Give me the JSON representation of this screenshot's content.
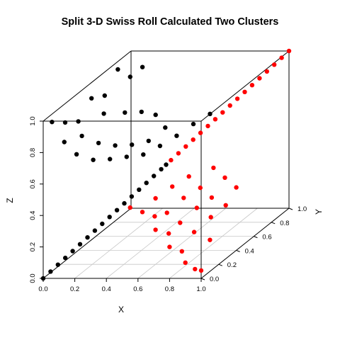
{
  "chart_data": {
    "type": "scatter",
    "projection": "3d",
    "title": "Split 3-D Swiss Roll Calculated Two Clusters",
    "xlabel": "X",
    "ylabel": "Y",
    "zlabel": "Z",
    "xlim": [
      0,
      1
    ],
    "ylim": [
      0,
      1
    ],
    "zlim": [
      0,
      1
    ],
    "x_ticks": [
      "0.0",
      "0.2",
      "0.4",
      "0.6",
      "0.8",
      "1.0"
    ],
    "y_ticks": [
      "0.0",
      "0.2",
      "0.4",
      "0.6",
      "0.8",
      "1.0"
    ],
    "z_ticks": [
      "0.0",
      "0.2",
      "0.4",
      "0.6",
      "0.8",
      "1.0"
    ],
    "grid": "box floor grid",
    "legend": "none",
    "series": [
      {
        "color": "#000000",
        "points": [
          [
            0.0,
            0.0,
            0.0
          ],
          [
            0.03,
            0.03,
            0.03
          ],
          [
            0.06,
            0.06,
            0.06
          ],
          [
            0.09,
            0.09,
            0.09
          ],
          [
            0.12,
            0.12,
            0.12
          ],
          [
            0.15,
            0.15,
            0.15
          ],
          [
            0.18,
            0.18,
            0.18
          ],
          [
            0.21,
            0.21,
            0.21
          ],
          [
            0.24,
            0.24,
            0.24
          ],
          [
            0.27,
            0.27,
            0.27
          ],
          [
            0.3,
            0.3,
            0.3
          ],
          [
            0.33,
            0.33,
            0.33
          ],
          [
            0.36,
            0.36,
            0.36
          ],
          [
            0.39,
            0.39,
            0.39
          ],
          [
            0.42,
            0.42,
            0.42
          ],
          [
            0.45,
            0.45,
            0.45
          ],
          [
            0.48,
            0.48,
            0.48
          ],
          [
            0.5,
            0.5,
            0.5
          ],
          [
            0.0,
            0.1,
            0.95
          ],
          [
            0.0,
            0.25,
            0.88
          ],
          [
            0.0,
            0.4,
            0.82
          ],
          [
            0.0,
            0.55,
            0.9
          ],
          [
            0.0,
            0.7,
            0.85
          ],
          [
            0.0,
            0.85,
            0.95
          ],
          [
            0.05,
            0.15,
            0.8
          ],
          [
            0.05,
            0.35,
            0.75
          ],
          [
            0.05,
            0.6,
            0.78
          ],
          [
            0.05,
            0.9,
            0.88
          ],
          [
            0.1,
            0.2,
            0.7
          ],
          [
            0.1,
            0.45,
            0.66
          ],
          [
            0.1,
            0.75,
            0.72
          ],
          [
            0.1,
            0.95,
            0.92
          ],
          [
            0.15,
            0.3,
            0.62
          ],
          [
            0.15,
            0.55,
            0.6
          ],
          [
            0.15,
            0.85,
            0.68
          ],
          [
            0.2,
            0.4,
            0.58
          ],
          [
            0.2,
            0.65,
            0.56
          ],
          [
            0.2,
            0.92,
            0.63
          ],
          [
            0.25,
            0.5,
            0.55
          ],
          [
            0.25,
            0.75,
            0.54
          ],
          [
            0.3,
            0.6,
            0.52
          ],
          [
            0.3,
            0.85,
            0.58
          ],
          [
            0.35,
            0.7,
            0.53
          ],
          [
            0.4,
            0.8,
            0.55
          ],
          [
            0.45,
            0.9,
            0.58
          ],
          [
            0.5,
            1.0,
            0.6
          ]
        ]
      },
      {
        "color": "#ff0000",
        "points": [
          [
            0.52,
            0.52,
            0.52
          ],
          [
            0.55,
            0.55,
            0.55
          ],
          [
            0.58,
            0.58,
            0.58
          ],
          [
            0.61,
            0.61,
            0.61
          ],
          [
            0.64,
            0.64,
            0.64
          ],
          [
            0.67,
            0.67,
            0.67
          ],
          [
            0.7,
            0.7,
            0.7
          ],
          [
            0.73,
            0.73,
            0.73
          ],
          [
            0.76,
            0.76,
            0.76
          ],
          [
            0.79,
            0.79,
            0.79
          ],
          [
            0.82,
            0.82,
            0.82
          ],
          [
            0.85,
            0.85,
            0.85
          ],
          [
            0.88,
            0.88,
            0.88
          ],
          [
            0.91,
            0.91,
            0.91
          ],
          [
            0.94,
            0.94,
            0.94
          ],
          [
            0.97,
            0.97,
            0.97
          ],
          [
            1.0,
            1.0,
            1.0
          ],
          [
            0.55,
            0.0,
            0.45
          ],
          [
            0.6,
            0.05,
            0.4
          ],
          [
            0.65,
            0.1,
            0.35
          ],
          [
            0.7,
            0.02,
            0.3
          ],
          [
            0.75,
            0.08,
            0.25
          ],
          [
            0.8,
            0.0,
            0.2
          ],
          [
            0.85,
            0.05,
            0.15
          ],
          [
            0.9,
            0.0,
            0.1
          ],
          [
            0.95,
            0.02,
            0.05
          ],
          [
            1.0,
            0.0,
            0.05
          ],
          [
            0.6,
            0.2,
            0.42
          ],
          [
            0.7,
            0.15,
            0.35
          ],
          [
            0.8,
            0.12,
            0.3
          ],
          [
            0.9,
            0.1,
            0.25
          ],
          [
            1.0,
            0.1,
            0.2
          ],
          [
            0.65,
            0.3,
            0.45
          ],
          [
            0.75,
            0.25,
            0.4
          ],
          [
            0.85,
            0.22,
            0.35
          ],
          [
            0.95,
            0.2,
            0.3
          ],
          [
            0.7,
            0.4,
            0.47
          ],
          [
            0.8,
            0.35,
            0.42
          ],
          [
            0.9,
            0.3,
            0.38
          ],
          [
            1.0,
            0.28,
            0.34
          ],
          [
            0.8,
            0.5,
            0.48
          ],
          [
            0.9,
            0.45,
            0.44
          ],
          [
            1.0,
            0.4,
            0.4
          ]
        ]
      }
    ]
  }
}
